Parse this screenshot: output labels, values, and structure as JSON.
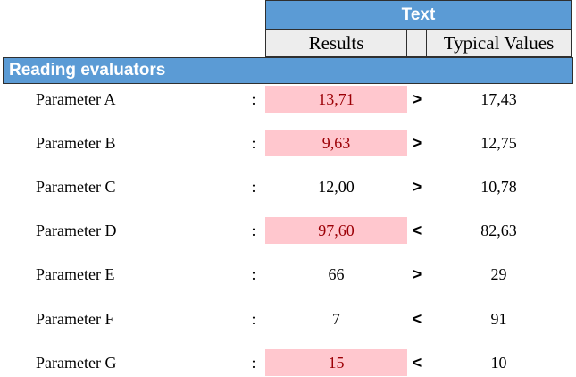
{
  "header": {
    "title": "Text",
    "col_results": "Results",
    "col_typical": "Typical Values"
  },
  "section": {
    "title": "Reading evaluators"
  },
  "colon": ":",
  "rows": [
    {
      "name": "Parameter A",
      "result": "13,71",
      "op": ">",
      "typical": "17,43",
      "highlight": true
    },
    {
      "name": "Parameter B",
      "result": "9,63",
      "op": ">",
      "typical": "12,75",
      "highlight": true
    },
    {
      "name": "Parameter C",
      "result": "12,00",
      "op": ">",
      "typical": "10,78",
      "highlight": false
    },
    {
      "name": "Parameter D",
      "result": "97,60",
      "op": "<",
      "typical": "82,63",
      "highlight": true
    },
    {
      "name": "Parameter E",
      "result": "66",
      "op": ">",
      "typical": "29",
      "highlight": false
    },
    {
      "name": "Parameter F",
      "result": "7",
      "op": "<",
      "typical": "91",
      "highlight": false
    },
    {
      "name": "Parameter G",
      "result": "15",
      "op": "<",
      "typical": "10",
      "highlight": true
    }
  ],
  "colors": {
    "header_blue": "#5b9bd5",
    "header_gray": "#ededed",
    "highlight_fill": "#ffc7ce",
    "highlight_text": "#9c0006"
  }
}
